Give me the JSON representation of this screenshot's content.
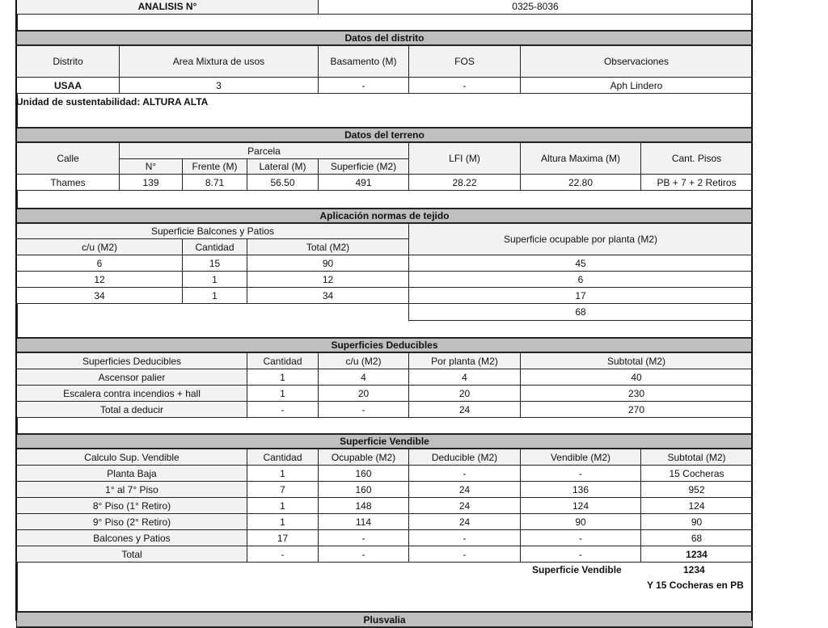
{
  "analisis": {
    "label": "ANALISIS N°",
    "value": "0325-8036"
  },
  "distrito": {
    "title": "Datos del distrito",
    "headers": [
      "Distrito",
      "Area Mixtura de usos",
      "Basamento (M)",
      "FOS",
      "Observaciones"
    ],
    "row": [
      "USAA",
      "3",
      "-",
      "-",
      "Aph Lindero"
    ],
    "note": "Unidad de sustentabilidad: ALTURA ALTA"
  },
  "terreno": {
    "title": "Datos del terreno",
    "calle": "Calle",
    "parcela": "Parcela",
    "sub_headers": [
      "N°",
      "Frente (M)",
      "Lateral (M)",
      "Superficie (M2)"
    ],
    "lfi": "LFI (M)",
    "altura": "Altura Maxima (M)",
    "pisos": "Cant. Pisos",
    "row": [
      "Thames",
      "139",
      "8.71",
      "56.50",
      "491",
      "28.22",
      "22.80",
      "PB + 7 + 2 Retiros"
    ]
  },
  "tejido": {
    "title": "Aplicación normas de tejido",
    "balcones_title": "Superficie Balcones y Patios",
    "headers": [
      "c/u (M2)",
      "Cantidad",
      "Total (M2)"
    ],
    "ocupable_title": "Superficie ocupable por planta (M2)",
    "rows": [
      [
        "6",
        "15",
        "90",
        "45"
      ],
      [
        "12",
        "1",
        "12",
        "6"
      ],
      [
        "34",
        "1",
        "34",
        "17"
      ]
    ],
    "ocupable_total": "68"
  },
  "deducibles": {
    "title": "Superficies Deducibles",
    "headers": [
      "Superficies Deducibles",
      "Cantidad",
      "c/u (M2)",
      "Por planta (M2)",
      "Subtotal (M2)"
    ],
    "rows": [
      [
        "Ascensor palier",
        "1",
        "4",
        "4",
        "40"
      ],
      [
        "Escalera contra incendios + hall",
        "1",
        "20",
        "20",
        "230"
      ],
      [
        "Total a deducir",
        "-",
        "-",
        "24",
        "270"
      ]
    ]
  },
  "vendible": {
    "title": "Superficie Vendible",
    "headers": [
      "Calculo Sup. Vendible",
      "Cantidad",
      "Ocupable (M2)",
      "Deducible (M2)",
      "Vendible (M2)",
      "Subtotal (M2)"
    ],
    "rows": [
      [
        "Planta Baja",
        "1",
        "160",
        "-",
        "-",
        "15 Cocheras"
      ],
      [
        "1° al 7° Piso",
        "7",
        "160",
        "24",
        "136",
        "952"
      ],
      [
        "8° Piso (1° Retiro)",
        "1",
        "148",
        "24",
        "124",
        "124"
      ],
      [
        "9° Piso (2° Retiro)",
        "1",
        "114",
        "24",
        "90",
        "90"
      ],
      [
        "Balcones y Patios",
        "17",
        "-",
        "-",
        "-",
        "68"
      ],
      [
        "Total",
        "-",
        "-",
        "-",
        "-",
        "1234"
      ]
    ],
    "summary_label": "Superficie Vendible",
    "summary_value": "1234",
    "summary_note": "Y 15 Cocheras en PB"
  },
  "plusvalia": {
    "title": "Plusvalia"
  }
}
